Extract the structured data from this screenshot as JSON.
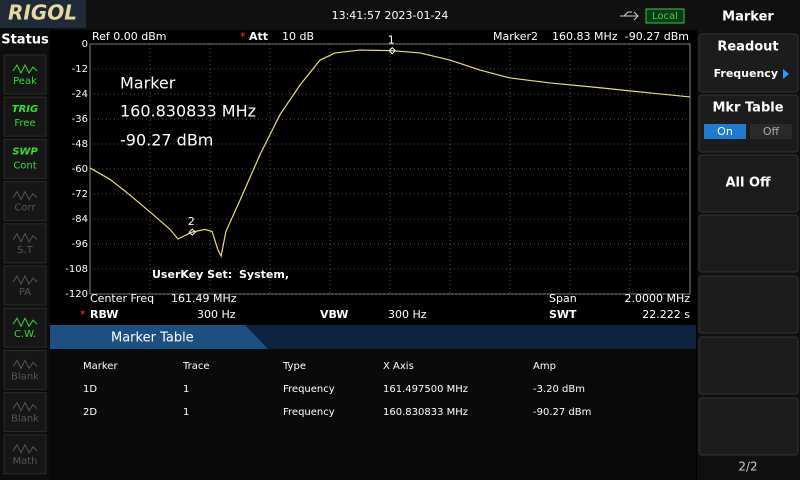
{
  "header": {
    "brand": "RIGOL",
    "time": "13:41:57 2023-01-24",
    "mode": "Local"
  },
  "status_panel": {
    "title": "Status",
    "items": [
      {
        "bottom": "Peak"
      },
      {
        "top": "TRIG",
        "bottom": "Free"
      },
      {
        "top": "SWP",
        "bottom": "Cont"
      },
      {
        "bottom": "Corr"
      },
      {
        "bottom": "S.T"
      },
      {
        "bottom": "PA"
      },
      {
        "bottom": "C.W."
      },
      {
        "bottom": "Blank"
      },
      {
        "bottom": "Blank"
      },
      {
        "bottom": "Math"
      }
    ]
  },
  "chart_data": {
    "type": "line",
    "info": {
      "ref": "Ref  0.00 dBm",
      "att_flag": "*",
      "att": "Att",
      "att_value": "10 dB",
      "marker": "Marker2",
      "marker_freq": "160.83 MHz",
      "marker_amp": "-90.27 dBm"
    },
    "annotations": {
      "marker": "Marker",
      "freq": "160.830833 MHz",
      "amp": "-90.27 dBm",
      "userkey": "UserKey Set:",
      "system": "System,"
    },
    "footer": {
      "center_label": "Center Freq",
      "center": "161.49 MHz",
      "span_label": "Span",
      "span": "2.0000 MHz",
      "rbw_flag": "*",
      "rbw_label": "RBW",
      "rbw": "300 Hz",
      "vbw_label": "VBW",
      "vbw": "300 Hz",
      "swt_label": "SWT",
      "swt": "22.222 s"
    },
    "xlim": [
      160.49,
      162.49
    ],
    "ylim": [
      -120,
      0
    ],
    "yticks": [
      0,
      -12,
      -24,
      -36,
      -48,
      -60,
      -72,
      -84,
      -96,
      -108,
      -120
    ],
    "grid": true,
    "color": "#e8e070",
    "x": [
      160.49,
      160.557,
      160.623,
      160.69,
      160.757,
      160.783,
      160.83,
      160.873,
      160.897,
      160.917,
      160.927,
      160.943,
      160.99,
      161.057,
      161.123,
      161.19,
      161.257,
      161.307,
      161.39,
      161.497,
      161.59,
      161.69,
      161.79,
      161.89,
      162.023,
      162.19,
      162.357,
      162.49
    ],
    "values": [
      -59.5,
      -65,
      -72.5,
      -80.6,
      -89,
      -93.6,
      -90.3,
      -89,
      -90,
      -99,
      -101.8,
      -90,
      -75,
      -53,
      -34,
      -19.7,
      -7.7,
      -4.3,
      -2.9,
      -3.2,
      -4.3,
      -7.7,
      -12.5,
      -16.3,
      -18.7,
      -21,
      -23.5,
      -25.4
    ],
    "markers": [
      {
        "label": "1",
        "x": 161.4975,
        "y": -3.2
      },
      {
        "label": "2",
        "x": 160.830833,
        "y": -90.27
      }
    ]
  },
  "marker_table": {
    "title": "Marker Table",
    "columns": [
      "Marker",
      "Trace",
      "Type",
      "X Axis",
      "Amp"
    ],
    "rows": [
      [
        "1D",
        "1",
        "Frequency",
        "161.497500 MHz",
        "-3.20 dBm"
      ],
      [
        "2D",
        "1",
        "Frequency",
        "160.830833 MHz",
        "-90.27 dBm"
      ]
    ]
  },
  "menu": {
    "title": "Marker",
    "readout": "Readout",
    "readout_value": "Frequency",
    "mkr_table": "Mkr Table",
    "on": "On",
    "off": "Off",
    "all_off": "All Off",
    "page": "2/2"
  }
}
